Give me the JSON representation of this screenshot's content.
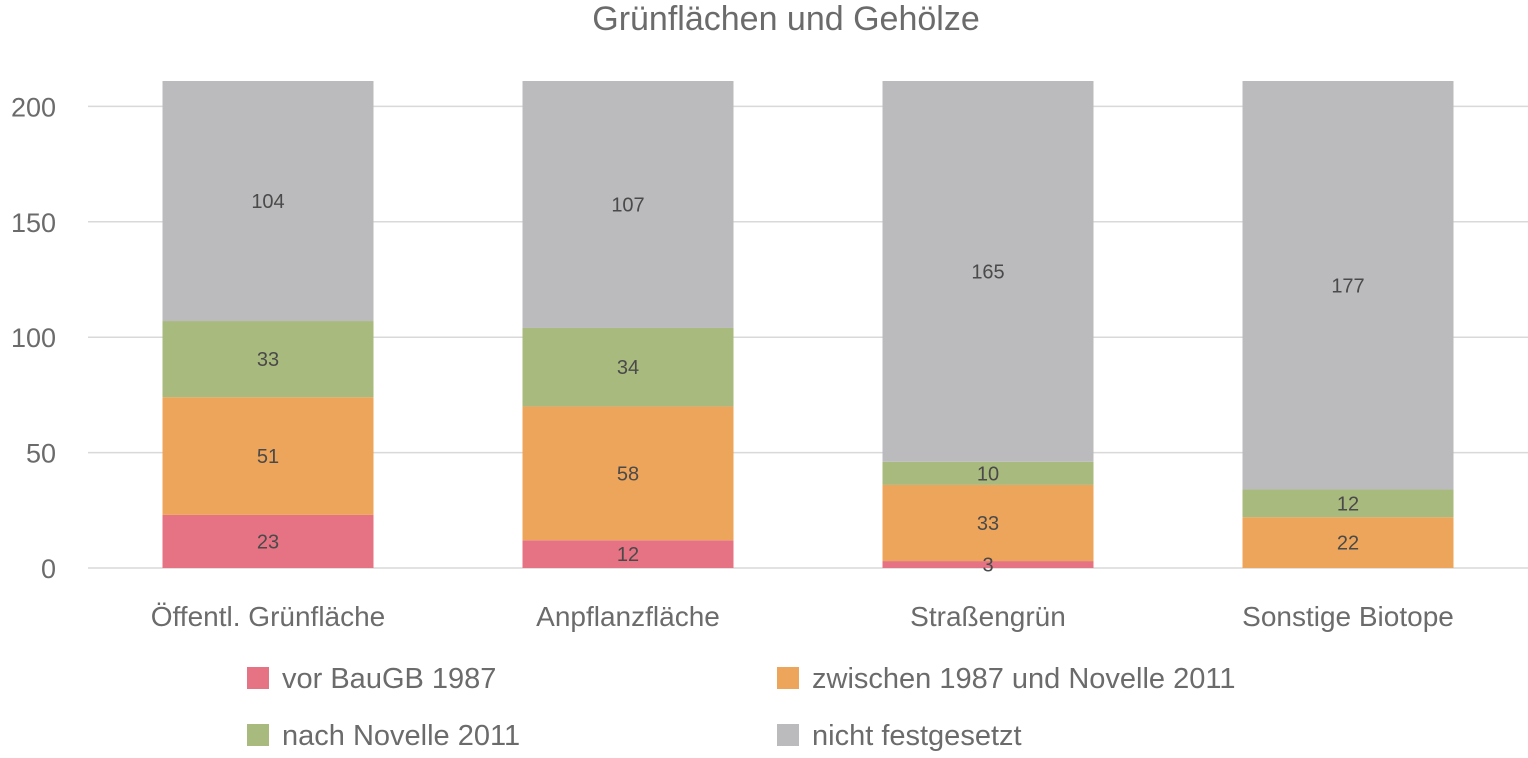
{
  "chart_data": {
    "type": "bar",
    "stacked": true,
    "title": "Grünflächen und Gehölze",
    "xlabel": "",
    "ylabel": "",
    "categories": [
      "Öffentl. Grünfläche",
      "Anpflanzfläche",
      "Straßengrün",
      "Sonstige Biotope"
    ],
    "series": [
      {
        "name": "vor BauGB 1987",
        "color": "#e57383",
        "values": [
          23,
          12,
          3,
          0
        ],
        "labels": [
          "23",
          "12",
          "3",
          ""
        ]
      },
      {
        "name": "zwischen 1987 und Novelle 2011",
        "color": "#eda55b",
        "values": [
          51,
          58,
          33,
          22
        ],
        "labels": [
          "51",
          "58",
          "33",
          "22"
        ]
      },
      {
        "name": "nach Novelle 2011",
        "color": "#a9ba7e",
        "values": [
          33,
          34,
          10,
          12
        ],
        "labels": [
          "33",
          "34",
          "10",
          "12"
        ]
      },
      {
        "name": "nicht festgesetzt",
        "color": "#bbbbbd",
        "values": [
          104,
          107,
          165,
          177
        ],
        "labels": [
          "104",
          "107",
          "165",
          "177"
        ]
      }
    ],
    "ylim": [
      0,
      211
    ],
    "yticks": [
      "0",
      "50",
      "100",
      "150",
      "200"
    ],
    "grid": true,
    "legend_position": "bottom"
  }
}
